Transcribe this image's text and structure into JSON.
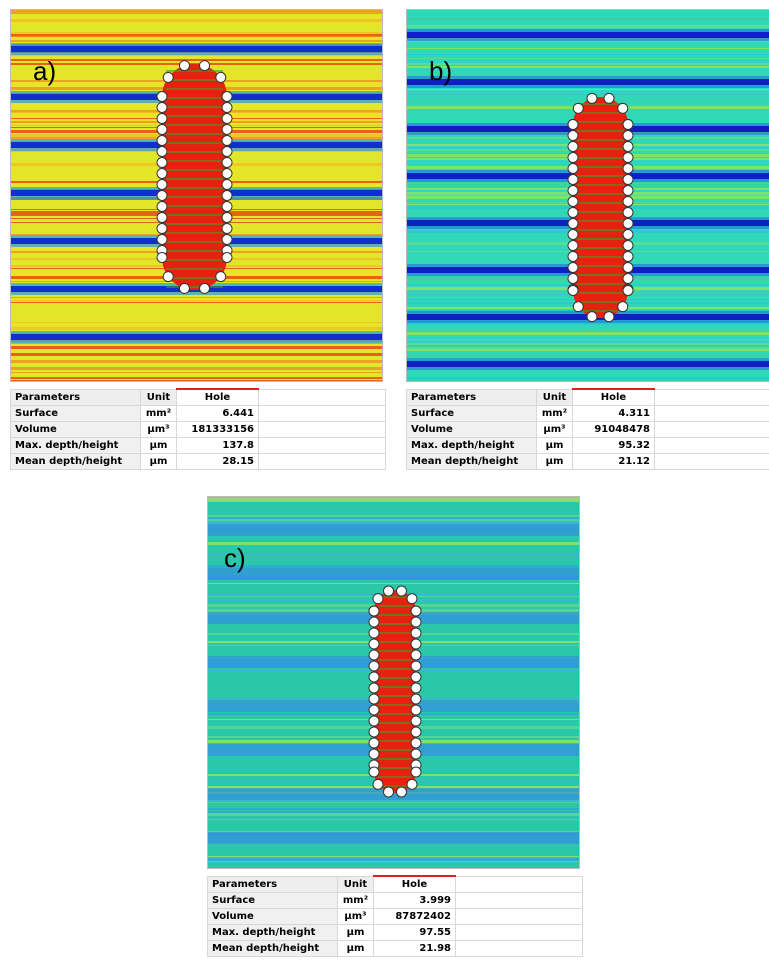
{
  "panels": [
    {
      "label": "a)",
      "table": {
        "header": [
          "Parameters",
          "Unit",
          "Hole"
        ],
        "rows": [
          [
            "Surface",
            "mm²",
            "6.441"
          ],
          [
            "Volume",
            "µm³",
            "181333156"
          ],
          [
            "Max. depth/height",
            "µm",
            "137.8"
          ],
          [
            "Mean depth/height",
            "µm",
            "28.15"
          ]
        ]
      }
    },
    {
      "label": "b)",
      "table": {
        "header": [
          "Parameters",
          "Unit",
          "Hole"
        ],
        "rows": [
          [
            "Surface",
            "mm²",
            "4.311"
          ],
          [
            "Volume",
            "µm³",
            "91048478"
          ],
          [
            "Max. depth/height",
            "µm",
            "95.32"
          ],
          [
            "Mean depth/height",
            "µm",
            "21.12"
          ]
        ]
      }
    },
    {
      "label": "c)",
      "table": {
        "header": [
          "Parameters",
          "Unit",
          "Hole"
        ],
        "rows": [
          [
            "Surface",
            "mm²",
            "3.999"
          ],
          [
            "Volume",
            "µm³",
            "87872402"
          ],
          [
            "Max. depth/height",
            "µm",
            "97.55"
          ],
          [
            "Mean depth/height",
            "µm",
            "21.98"
          ]
        ]
      }
    }
  ]
}
